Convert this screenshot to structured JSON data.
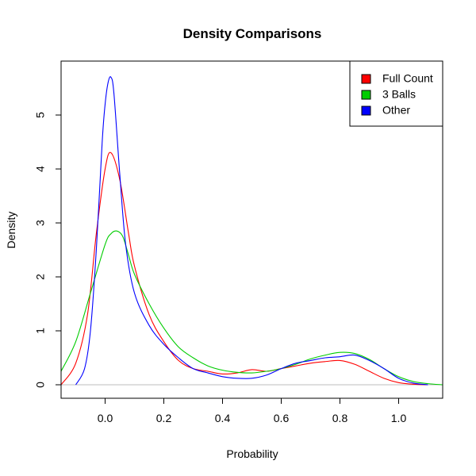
{
  "chart_data": {
    "type": "line",
    "title": "Density Comparisons",
    "xlabel": "Probability",
    "ylabel": "Density",
    "xlim": [
      -0.15,
      1.15
    ],
    "ylim": [
      -0.25,
      6.0
    ],
    "xticks": [
      "0.0",
      "0.2",
      "0.4",
      "0.6",
      "0.8",
      "1.0"
    ],
    "yticks": [
      "0",
      "1",
      "2",
      "3",
      "4",
      "5"
    ],
    "baseline": 0,
    "legend_position": "top-right",
    "series": [
      {
        "name": "Full Count",
        "color": "#ff0000",
        "x": [
          -0.15,
          -0.1,
          -0.06,
          -0.03,
          0.0,
          0.02,
          0.05,
          0.08,
          0.1,
          0.15,
          0.2,
          0.25,
          0.3,
          0.35,
          0.4,
          0.45,
          0.5,
          0.55,
          0.6,
          0.65,
          0.7,
          0.75,
          0.8,
          0.85,
          0.9,
          0.95,
          1.0,
          1.05,
          1.1
        ],
        "y": [
          0.0,
          0.4,
          1.3,
          2.8,
          4.0,
          4.3,
          3.8,
          2.8,
          2.2,
          1.3,
          0.8,
          0.45,
          0.3,
          0.25,
          0.2,
          0.22,
          0.28,
          0.25,
          0.3,
          0.35,
          0.4,
          0.43,
          0.45,
          0.38,
          0.25,
          0.12,
          0.04,
          0.01,
          0.0
        ]
      },
      {
        "name": "3 Balls",
        "color": "#00cc00",
        "x": [
          -0.15,
          -0.1,
          -0.05,
          0.0,
          0.02,
          0.04,
          0.06,
          0.08,
          0.1,
          0.15,
          0.2,
          0.25,
          0.3,
          0.35,
          0.4,
          0.45,
          0.5,
          0.55,
          0.6,
          0.65,
          0.7,
          0.75,
          0.8,
          0.85,
          0.9,
          0.95,
          1.0,
          1.05,
          1.1,
          1.15
        ],
        "y": [
          0.25,
          0.8,
          1.7,
          2.6,
          2.8,
          2.85,
          2.75,
          2.4,
          2.05,
          1.5,
          1.05,
          0.7,
          0.5,
          0.35,
          0.27,
          0.23,
          0.22,
          0.25,
          0.3,
          0.38,
          0.48,
          0.55,
          0.6,
          0.58,
          0.47,
          0.3,
          0.15,
          0.06,
          0.02,
          0.0
        ]
      },
      {
        "name": "Other",
        "color": "#0000ff",
        "x": [
          -0.1,
          -0.07,
          -0.05,
          -0.03,
          -0.01,
          0.0,
          0.01,
          0.02,
          0.03,
          0.05,
          0.07,
          0.1,
          0.15,
          0.2,
          0.25,
          0.3,
          0.35,
          0.4,
          0.45,
          0.5,
          0.55,
          0.6,
          0.65,
          0.7,
          0.75,
          0.8,
          0.85,
          0.9,
          0.95,
          1.0,
          1.05,
          1.1
        ],
        "y": [
          0.0,
          0.3,
          1.0,
          2.5,
          4.5,
          5.2,
          5.6,
          5.7,
          5.4,
          3.9,
          2.6,
          1.7,
          1.1,
          0.75,
          0.5,
          0.3,
          0.22,
          0.15,
          0.12,
          0.12,
          0.18,
          0.3,
          0.4,
          0.45,
          0.5,
          0.52,
          0.55,
          0.45,
          0.3,
          0.12,
          0.03,
          0.0
        ]
      }
    ]
  }
}
